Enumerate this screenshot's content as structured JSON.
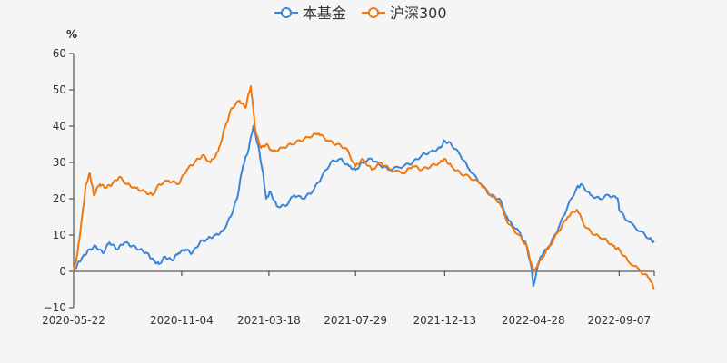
{
  "chart_data": {
    "type": "line",
    "ylabel": "%",
    "ylim": [
      -10,
      60
    ],
    "y_ticks": [
      -10,
      0,
      10,
      20,
      30,
      40,
      50,
      60
    ],
    "x_ticks": [
      "2020-05-22",
      "2020-11-04",
      "2021-03-18",
      "2021-07-29",
      "2021-12-13",
      "2022-04-28",
      "2022-09-07"
    ],
    "grid": false,
    "legend": "top-center",
    "series": [
      {
        "name": "本基金",
        "color": "#3c84d8",
        "values": [
          [
            "2020-05-22",
            0
          ],
          [
            "2020-05-28",
            2
          ],
          [
            "2020-06-05",
            4
          ],
          [
            "2020-06-15",
            6
          ],
          [
            "2020-06-25",
            7
          ],
          [
            "2020-07-06",
            5
          ],
          [
            "2020-07-16",
            8
          ],
          [
            "2020-07-28",
            6
          ],
          [
            "2020-08-08",
            8
          ],
          [
            "2020-08-20",
            7
          ],
          [
            "2020-09-01",
            6
          ],
          [
            "2020-09-12",
            5
          ],
          [
            "2020-09-22",
            3
          ],
          [
            "2020-09-30",
            2
          ],
          [
            "2020-10-10",
            4
          ],
          [
            "2020-10-20",
            3
          ],
          [
            "2020-10-30",
            5
          ],
          [
            "2020-11-10",
            6
          ],
          [
            "2020-11-20",
            5
          ],
          [
            "2020-12-02",
            8
          ],
          [
            "2020-12-14",
            9
          ],
          [
            "2020-12-26",
            10
          ],
          [
            "2021-01-06",
            11
          ],
          [
            "2021-01-18",
            15
          ],
          [
            "2021-01-28",
            20
          ],
          [
            "2021-02-06",
            29
          ],
          [
            "2021-02-14",
            33
          ],
          [
            "2021-02-22",
            40
          ],
          [
            "2021-03-01",
            35
          ],
          [
            "2021-03-08",
            28
          ],
          [
            "2021-03-14",
            20
          ],
          [
            "2021-03-20",
            22
          ],
          [
            "2021-03-30",
            18
          ],
          [
            "2021-04-12",
            18
          ],
          [
            "2021-04-26",
            21
          ],
          [
            "2021-05-10",
            20
          ],
          [
            "2021-05-24",
            22
          ],
          [
            "2021-06-07",
            26
          ],
          [
            "2021-06-21",
            30
          ],
          [
            "2021-07-05",
            31
          ],
          [
            "2021-07-19",
            29
          ],
          [
            "2021-07-29",
            28
          ],
          [
            "2021-08-09",
            30
          ],
          [
            "2021-08-23",
            31
          ],
          [
            "2021-09-06",
            29
          ],
          [
            "2021-09-20",
            28
          ],
          [
            "2021-10-11",
            29
          ],
          [
            "2021-10-25",
            30
          ],
          [
            "2021-11-08",
            32
          ],
          [
            "2021-11-22",
            33
          ],
          [
            "2021-12-06",
            34
          ],
          [
            "2021-12-13",
            36
          ],
          [
            "2021-12-23",
            35
          ],
          [
            "2022-01-06",
            32
          ],
          [
            "2022-01-20",
            28
          ],
          [
            "2022-02-07",
            24
          ],
          [
            "2022-02-21",
            21
          ],
          [
            "2022-03-07",
            20
          ],
          [
            "2022-03-21",
            14
          ],
          [
            "2022-04-06",
            11
          ],
          [
            "2022-04-18",
            7
          ],
          [
            "2022-04-26",
            0
          ],
          [
            "2022-04-28",
            -4
          ],
          [
            "2022-05-09",
            4
          ],
          [
            "2022-05-23",
            7
          ],
          [
            "2022-06-06",
            12
          ],
          [
            "2022-06-20",
            18
          ],
          [
            "2022-07-04",
            23
          ],
          [
            "2022-07-11",
            24
          ],
          [
            "2022-07-25",
            21
          ],
          [
            "2022-08-08",
            20
          ],
          [
            "2022-08-22",
            21
          ],
          [
            "2022-09-05",
            20
          ],
          [
            "2022-09-07",
            17
          ],
          [
            "2022-09-19",
            14
          ],
          [
            "2022-10-10",
            11
          ],
          [
            "2022-10-24",
            9
          ],
          [
            "2022-10-31",
            8
          ]
        ]
      },
      {
        "name": "沪深300",
        "color": "#f0790f",
        "values": [
          [
            "2020-05-22",
            0
          ],
          [
            "2020-05-28",
            5
          ],
          [
            "2020-06-04",
            15
          ],
          [
            "2020-06-10",
            24
          ],
          [
            "2020-06-16",
            27
          ],
          [
            "2020-06-22",
            21
          ],
          [
            "2020-07-01",
            24
          ],
          [
            "2020-07-10",
            23
          ],
          [
            "2020-07-20",
            24
          ],
          [
            "2020-07-31",
            26
          ],
          [
            "2020-08-12",
            24
          ],
          [
            "2020-08-25",
            23
          ],
          [
            "2020-09-08",
            22
          ],
          [
            "2020-09-20",
            21
          ],
          [
            "2020-10-01",
            24
          ],
          [
            "2020-10-15",
            25
          ],
          [
            "2020-10-30",
            24
          ],
          [
            "2020-11-12",
            28
          ],
          [
            "2020-11-24",
            30
          ],
          [
            "2020-12-06",
            32
          ],
          [
            "2020-12-18",
            30
          ],
          [
            "2020-12-30",
            33
          ],
          [
            "2021-01-10",
            40
          ],
          [
            "2021-01-20",
            45
          ],
          [
            "2021-02-01",
            47
          ],
          [
            "2021-02-10",
            45
          ],
          [
            "2021-02-18",
            51
          ],
          [
            "2021-02-26",
            38
          ],
          [
            "2021-03-06",
            34
          ],
          [
            "2021-03-14",
            35
          ],
          [
            "2021-03-24",
            33
          ],
          [
            "2021-04-07",
            34
          ],
          [
            "2021-04-21",
            35
          ],
          [
            "2021-05-05",
            36
          ],
          [
            "2021-05-19",
            37
          ],
          [
            "2021-06-02",
            38
          ],
          [
            "2021-06-16",
            36
          ],
          [
            "2021-06-30",
            35
          ],
          [
            "2021-07-14",
            34
          ],
          [
            "2021-07-29",
            29
          ],
          [
            "2021-08-09",
            31
          ],
          [
            "2021-08-23",
            28
          ],
          [
            "2021-09-06",
            30
          ],
          [
            "2021-09-20",
            28
          ],
          [
            "2021-10-11",
            27
          ],
          [
            "2021-10-25",
            29
          ],
          [
            "2021-11-08",
            28
          ],
          [
            "2021-11-22",
            29
          ],
          [
            "2021-12-06",
            30
          ],
          [
            "2021-12-13",
            31
          ],
          [
            "2021-12-23",
            29
          ],
          [
            "2022-01-06",
            27
          ],
          [
            "2022-01-20",
            26
          ],
          [
            "2022-02-07",
            24
          ],
          [
            "2022-02-21",
            21
          ],
          [
            "2022-03-07",
            19
          ],
          [
            "2022-03-21",
            13
          ],
          [
            "2022-04-06",
            10
          ],
          [
            "2022-04-18",
            7
          ],
          [
            "2022-04-28",
            0
          ],
          [
            "2022-05-09",
            3
          ],
          [
            "2022-05-23",
            7
          ],
          [
            "2022-06-06",
            11
          ],
          [
            "2022-06-20",
            15
          ],
          [
            "2022-07-04",
            17
          ],
          [
            "2022-07-18",
            12
          ],
          [
            "2022-08-01",
            10
          ],
          [
            "2022-08-15",
            9
          ],
          [
            "2022-08-29",
            7
          ],
          [
            "2022-09-07",
            6
          ],
          [
            "2022-09-20",
            3
          ],
          [
            "2022-10-10",
            0
          ],
          [
            "2022-10-24",
            -2
          ],
          [
            "2022-10-31",
            -5
          ]
        ]
      }
    ]
  }
}
